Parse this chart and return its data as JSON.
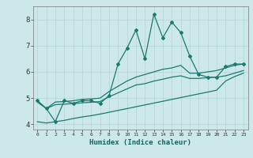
{
  "xlabel": "Humidex (Indice chaleur)",
  "background_color": "#cce8ea",
  "grid_color": "#b8d8da",
  "line_color": "#1a7a6e",
  "x_values": [
    0,
    1,
    2,
    3,
    4,
    5,
    6,
    7,
    8,
    9,
    10,
    11,
    12,
    13,
    14,
    15,
    16,
    17,
    18,
    19,
    20,
    21,
    22,
    23
  ],
  "series_main": [
    4.9,
    4.6,
    4.1,
    4.9,
    4.8,
    4.9,
    4.9,
    4.8,
    5.1,
    6.3,
    6.9,
    7.6,
    6.5,
    8.2,
    7.3,
    7.9,
    7.5,
    6.6,
    5.9,
    5.8,
    5.8,
    6.2,
    6.3,
    6.3
  ],
  "series_upper": [
    4.9,
    4.6,
    4.85,
    4.87,
    4.9,
    4.95,
    4.97,
    5.0,
    5.25,
    5.45,
    5.65,
    5.8,
    5.9,
    6.0,
    6.1,
    6.15,
    6.25,
    5.95,
    5.95,
    6.0,
    6.05,
    6.15,
    6.25,
    6.3
  ],
  "series_mid": [
    4.85,
    4.6,
    4.75,
    4.77,
    4.79,
    4.82,
    4.84,
    4.87,
    5.05,
    5.2,
    5.35,
    5.5,
    5.55,
    5.65,
    5.72,
    5.8,
    5.85,
    5.75,
    5.75,
    5.78,
    5.8,
    5.85,
    5.95,
    6.05
  ],
  "series_lower": [
    4.1,
    4.05,
    4.1,
    4.15,
    4.22,
    4.28,
    4.33,
    4.39,
    4.46,
    4.53,
    4.6,
    4.67,
    4.74,
    4.81,
    4.88,
    4.95,
    5.02,
    5.09,
    5.16,
    5.23,
    5.3,
    5.65,
    5.82,
    5.95
  ],
  "ylim": [
    3.8,
    8.5
  ],
  "xlim": [
    -0.5,
    23.5
  ],
  "yticks": [
    4,
    5,
    6,
    7,
    8
  ],
  "xticks": [
    0,
    1,
    2,
    3,
    4,
    5,
    6,
    7,
    8,
    9,
    10,
    11,
    12,
    13,
    14,
    15,
    16,
    17,
    18,
    19,
    20,
    21,
    22,
    23
  ],
  "figsize": [
    3.2,
    2.0
  ],
  "dpi": 100
}
